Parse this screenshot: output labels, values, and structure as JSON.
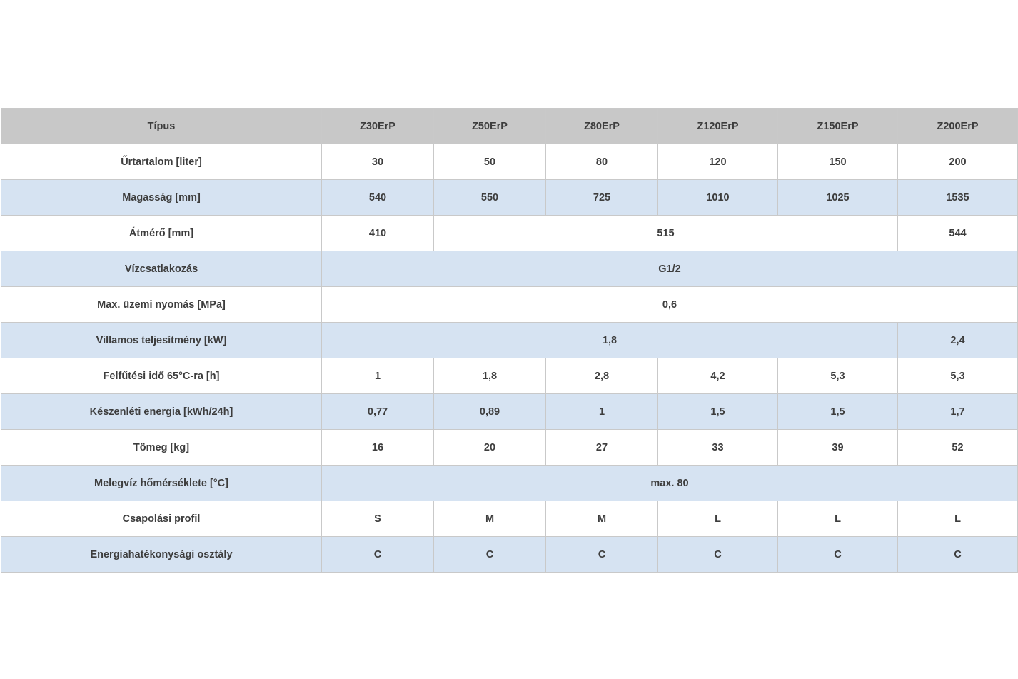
{
  "table": {
    "header": {
      "label": "Típus",
      "models": [
        "Z30ErP",
        "Z50ErP",
        "Z80ErP",
        "Z120ErP",
        "Z150ErP",
        "Z200ErP"
      ]
    },
    "rows": [
      {
        "label": "Űrtartalom [liter]",
        "cells": [
          {
            "v": "30"
          },
          {
            "v": "50"
          },
          {
            "v": "80"
          },
          {
            "v": "120"
          },
          {
            "v": "150"
          },
          {
            "v": "200"
          }
        ]
      },
      {
        "label": "Magasság [mm]",
        "cells": [
          {
            "v": "540"
          },
          {
            "v": "550"
          },
          {
            "v": "725"
          },
          {
            "v": "1010"
          },
          {
            "v": "1025"
          },
          {
            "v": "1535"
          }
        ]
      },
      {
        "label": "Átmérő [mm]",
        "cells": [
          {
            "v": "410"
          },
          {
            "v": "515",
            "span": 4
          },
          {
            "v": "544"
          }
        ]
      },
      {
        "label": "Vízcsatlakozás",
        "cells": [
          {
            "v": "G1/2",
            "span": 6
          }
        ]
      },
      {
        "label": "Max. üzemi nyomás [MPa]",
        "cells": [
          {
            "v": "0,6",
            "span": 6
          }
        ]
      },
      {
        "label": "Villamos teljesítmény [kW]",
        "cells": [
          {
            "v": "1,8",
            "span": 5
          },
          {
            "v": "2,4"
          }
        ]
      },
      {
        "label": "Felfűtési idő 65°C-ra [h]",
        "cells": [
          {
            "v": "1"
          },
          {
            "v": "1,8"
          },
          {
            "v": "2,8"
          },
          {
            "v": "4,2"
          },
          {
            "v": "5,3"
          },
          {
            "v": "5,3"
          }
        ]
      },
      {
        "label": "Készenléti energia [kWh/24h]",
        "cells": [
          {
            "v": "0,77"
          },
          {
            "v": "0,89"
          },
          {
            "v": "1"
          },
          {
            "v": "1,5"
          },
          {
            "v": "1,5"
          },
          {
            "v": "1,7"
          }
        ]
      },
      {
        "label": "Tömeg [kg]",
        "cells": [
          {
            "v": "16"
          },
          {
            "v": "20"
          },
          {
            "v": "27"
          },
          {
            "v": "33"
          },
          {
            "v": "39"
          },
          {
            "v": "52"
          }
        ]
      },
      {
        "label": "Melegvíz hőmérséklete  [°C]",
        "cells": [
          {
            "v": "max. 80",
            "span": 6
          }
        ]
      },
      {
        "label": "Csapolási profil",
        "cells": [
          {
            "v": "S"
          },
          {
            "v": "M"
          },
          {
            "v": "M"
          },
          {
            "v": "L"
          },
          {
            "v": "L"
          },
          {
            "v": "L"
          }
        ]
      },
      {
        "label": "Energiahatékonysági osztály",
        "cells": [
          {
            "v": "C"
          },
          {
            "v": "C"
          },
          {
            "v": "C"
          },
          {
            "v": "C"
          },
          {
            "v": "C"
          },
          {
            "v": "C"
          }
        ]
      }
    ]
  },
  "colors": {
    "header_bg": "#c8c8c8",
    "stripe_bg": "#d6e3f2",
    "plain_bg": "#ffffff",
    "border": "#c9c9c9",
    "text": "#3d3d3d"
  }
}
